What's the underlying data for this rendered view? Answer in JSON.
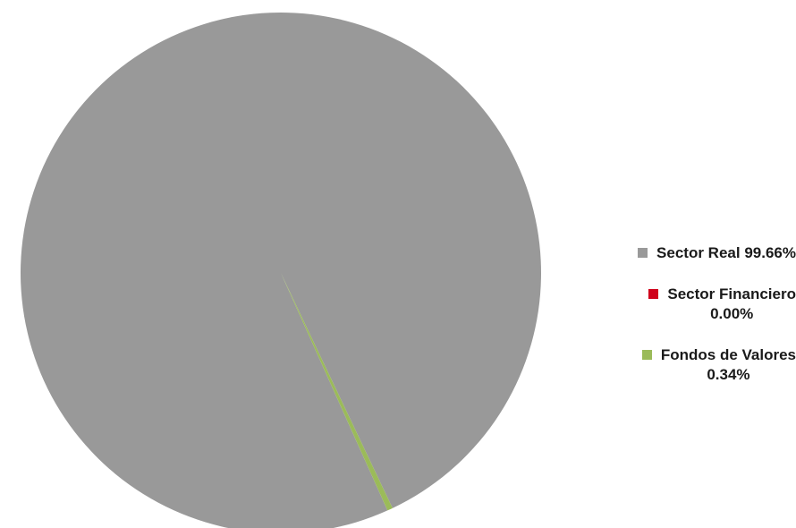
{
  "chart_data": {
    "type": "pie",
    "title": "",
    "slices": [
      {
        "label": "Sector Real",
        "value": 99.66,
        "display_value": "99.66%",
        "color": "#999999"
      },
      {
        "label": "Sector Financiero",
        "value": 0.0,
        "display_value": "0.00%",
        "color": "#d0021b"
      },
      {
        "label": "Fondos de Valores",
        "value": 0.34,
        "display_value": "0.34%",
        "color": "#9bbb59"
      }
    ],
    "legend_position": "right"
  }
}
